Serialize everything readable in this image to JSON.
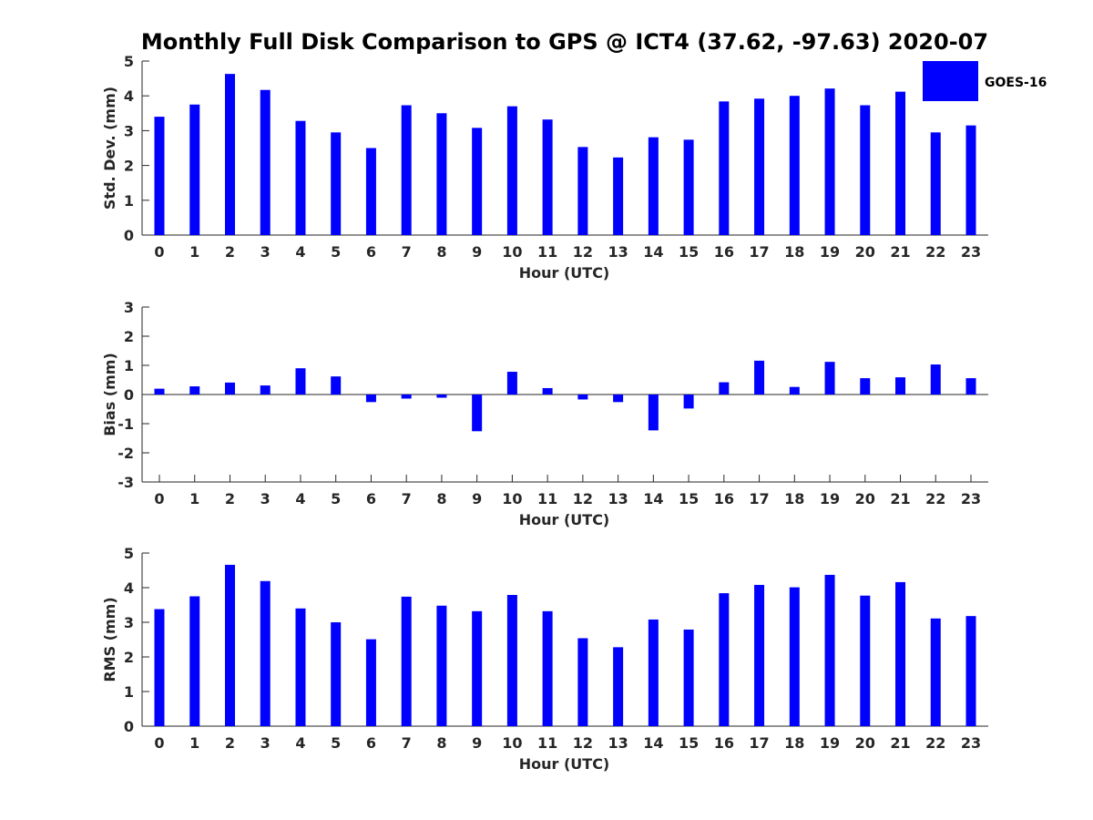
{
  "colors": {
    "bar": "#0000ff",
    "axis": "#262626",
    "text": "#262626",
    "background": "#ffffff"
  },
  "chart_data": [
    {
      "type": "bar",
      "title": "Monthly Full Disk Comparison to GPS @ ICT4 (37.62, -97.63) 2020-07",
      "xlabel": "Hour (UTC)",
      "ylabel": "Std. Dev. (mm)",
      "ylim": [
        0,
        5
      ],
      "yticks": [
        "0",
        "1",
        "2",
        "3",
        "4",
        "5"
      ],
      "categories": [
        "0",
        "1",
        "2",
        "3",
        "4",
        "5",
        "6",
        "7",
        "8",
        "9",
        "10",
        "11",
        "12",
        "13",
        "14",
        "15",
        "16",
        "17",
        "18",
        "19",
        "20",
        "21",
        "22",
        "23"
      ],
      "legend": {
        "entries": [
          "GOES-16"
        ],
        "placement": "top-right"
      },
      "series": [
        {
          "name": "GOES-16",
          "values": [
            3.4,
            3.75,
            4.63,
            4.17,
            3.28,
            2.95,
            2.5,
            3.73,
            3.5,
            3.08,
            3.7,
            3.32,
            2.53,
            2.23,
            2.81,
            2.74,
            3.84,
            3.92,
            4.0,
            4.21,
            3.73,
            4.12,
            2.95,
            3.15
          ]
        }
      ]
    },
    {
      "type": "bar",
      "xlabel": "Hour (UTC)",
      "ylabel": "Bias (mm)",
      "ylim": [
        -3,
        3
      ],
      "yticks": [
        "-3",
        "-2",
        "-1",
        "0",
        "1",
        "2",
        "3"
      ],
      "categories": [
        "0",
        "1",
        "2",
        "3",
        "4",
        "5",
        "6",
        "7",
        "8",
        "9",
        "10",
        "11",
        "12",
        "13",
        "14",
        "15",
        "16",
        "17",
        "18",
        "19",
        "20",
        "21",
        "22",
        "23"
      ],
      "series": [
        {
          "values": [
            0.2,
            0.28,
            0.41,
            0.31,
            0.9,
            0.62,
            -0.26,
            -0.14,
            -0.11,
            -1.26,
            0.78,
            0.22,
            -0.17,
            -0.26,
            -1.23,
            -0.48,
            0.42,
            1.16,
            0.26,
            1.12,
            0.56,
            0.59,
            1.03,
            0.56
          ]
        }
      ]
    },
    {
      "type": "bar",
      "xlabel": "Hour (UTC)",
      "ylabel": "RMS (mm)",
      "ylim": [
        0,
        5
      ],
      "yticks": [
        "0",
        "1",
        "2",
        "3",
        "4",
        "5"
      ],
      "categories": [
        "0",
        "1",
        "2",
        "3",
        "4",
        "5",
        "6",
        "7",
        "8",
        "9",
        "10",
        "11",
        "12",
        "13",
        "14",
        "15",
        "16",
        "17",
        "18",
        "19",
        "20",
        "21",
        "22",
        "23"
      ],
      "series": [
        {
          "values": [
            3.38,
            3.75,
            4.66,
            4.19,
            3.4,
            3.0,
            2.51,
            3.74,
            3.48,
            3.32,
            3.79,
            3.32,
            2.54,
            2.28,
            3.08,
            2.79,
            3.84,
            4.08,
            4.01,
            4.37,
            3.77,
            4.16,
            3.11,
            3.18
          ]
        }
      ]
    }
  ]
}
